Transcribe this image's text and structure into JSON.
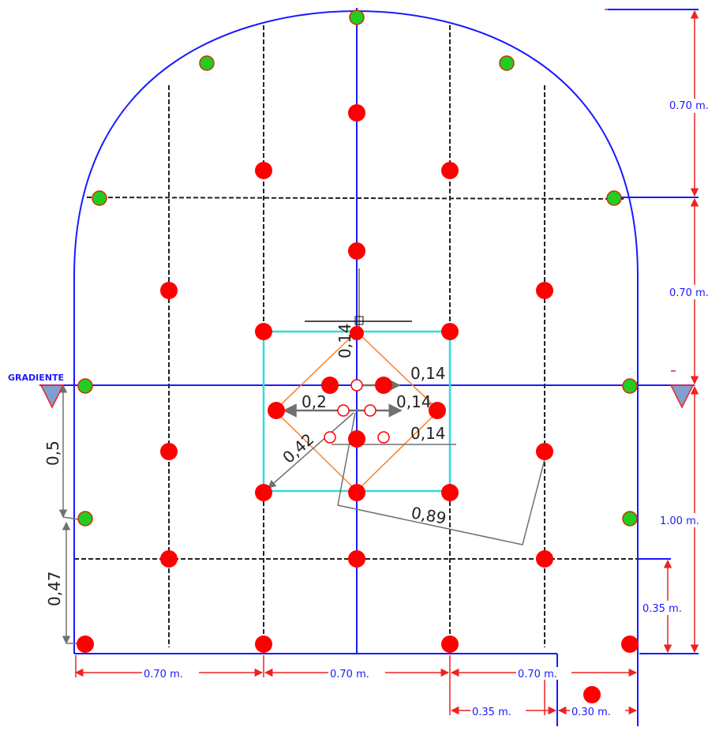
{
  "gradient_label": "GRADIENTE",
  "dimensions": {
    "right_upper": "0.70 m.",
    "right_middle": "0.70 m.",
    "right_lower": "1.00 m.",
    "right_floor": "0.35 m.",
    "bottom_left": "0.70 m.",
    "bottom_center": "0.70 m.",
    "bottom_right": "0.70 m.",
    "ditch_width": "0.35 m.",
    "ditch_depth": "0.30 m."
  },
  "measurements": {
    "cut_top": "0,14",
    "cut_right_1": "0,14",
    "cut_right_2": "0,14",
    "cut_right_3": "0,14",
    "cut_left": "0,2",
    "diagonal": "0,42",
    "long_diagonal": "0,89",
    "left_upper": "0,5",
    "left_lower": "0,47"
  },
  "legend_colors": {
    "tunnel_outline": "#1a1aff",
    "production_hole": "#ff0000",
    "perimeter_hole": "#22cc22",
    "cut_square": "#33dddd",
    "cut_diamond": "#ff7f27",
    "dimension_line": "#ee2222"
  }
}
